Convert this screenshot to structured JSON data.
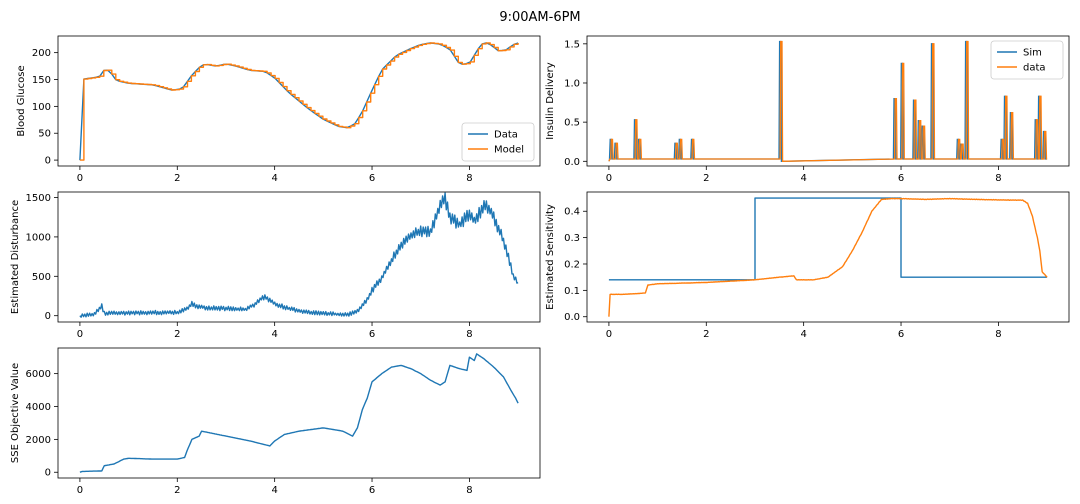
{
  "title": "9:00AM-6PM",
  "colors": {
    "blue": "#1f77b4",
    "orange": "#ff7f0e"
  },
  "chart_data": [
    {
      "id": "glucose",
      "type": "line",
      "ylabel": "Blood Glucose",
      "xlim": [
        -0.45,
        9.45
      ],
      "ylim": [
        -11,
        231
      ],
      "xticks": [
        0,
        2,
        4,
        6,
        8
      ],
      "yticks": [
        0,
        50,
        100,
        150,
        200
      ],
      "legend": {
        "position": "bottom-right",
        "entries": [
          "Data",
          "Model"
        ]
      },
      "series": [
        {
          "name": "Data",
          "color": "#1f77b4",
          "step": false,
          "x": [
            0,
            0.02,
            0.4,
            0.5,
            0.6,
            0.75,
            1.0,
            1.5,
            1.9,
            2.1,
            2.3,
            2.5,
            2.6,
            2.8,
            3.0,
            3.2,
            3.5,
            3.8,
            4.0,
            4.3,
            4.7,
            5.0,
            5.3,
            5.5,
            5.65,
            5.8,
            6.0,
            6.2,
            6.5,
            6.8,
            7.0,
            7.2,
            7.4,
            7.6,
            7.8,
            8.0,
            8.1,
            8.2,
            8.3,
            8.45,
            8.6,
            8.75,
            8.9,
            9.0
          ],
          "y": [
            0,
            150,
            155,
            168,
            167,
            148,
            143,
            140,
            130,
            133,
            158,
            177,
            178,
            175,
            179,
            175,
            167,
            165,
            153,
            125,
            95,
            76,
            63,
            60,
            68,
            90,
            130,
            168,
            195,
            208,
            215,
            218,
            216,
            206,
            178,
            180,
            195,
            210,
            220,
            214,
            203,
            205,
            215,
            218
          ]
        },
        {
          "name": "Model",
          "color": "#ff7f0e",
          "step": true,
          "x": [
            0,
            0.02,
            0.4,
            0.5,
            0.6,
            0.75,
            1.0,
            1.5,
            1.9,
            2.1,
            2.3,
            2.5,
            2.6,
            2.8,
            3.0,
            3.2,
            3.5,
            3.8,
            4.0,
            4.3,
            4.7,
            5.0,
            5.3,
            5.5,
            5.65,
            5.8,
            6.0,
            6.2,
            6.5,
            6.8,
            7.0,
            7.2,
            7.4,
            7.6,
            7.8,
            8.0,
            8.1,
            8.2,
            8.3,
            8.45,
            8.6,
            8.75,
            8.9,
            9.0
          ],
          "y": [
            0,
            150,
            155,
            168,
            167,
            148,
            143,
            140,
            130,
            133,
            158,
            177,
            178,
            175,
            179,
            175,
            167,
            165,
            153,
            125,
            95,
            76,
            63,
            60,
            68,
            90,
            130,
            168,
            195,
            208,
            215,
            218,
            216,
            206,
            178,
            180,
            195,
            210,
            220,
            214,
            203,
            205,
            215,
            218
          ]
        }
      ]
    },
    {
      "id": "insulin",
      "type": "line",
      "ylabel": "Insulin Delivery",
      "xlim": [
        -0.45,
        9.45
      ],
      "ylim": [
        -0.06,
        1.6
      ],
      "xticks": [
        0,
        2,
        4,
        6,
        8
      ],
      "yticks": [
        0.0,
        0.5,
        1.0,
        1.5
      ],
      "ytick_labels": [
        "0.0",
        "0.5",
        "1.0",
        "1.5"
      ],
      "legend": {
        "position": "top-right",
        "entries": [
          "Sim",
          "data"
        ]
      },
      "baseline": 0.03,
      "pulses": [
        {
          "x": 0.05,
          "h": 0.28
        },
        {
          "x": 0.15,
          "h": 0.23
        },
        {
          "x": 0.55,
          "h": 0.53
        },
        {
          "x": 0.63,
          "h": 0.28
        },
        {
          "x": 1.38,
          "h": 0.23
        },
        {
          "x": 1.47,
          "h": 0.28
        },
        {
          "x": 1.72,
          "h": 0.28
        },
        {
          "x": 3.53,
          "h": 1.53
        },
        {
          "x": 5.88,
          "h": 0.8
        },
        {
          "x": 6.03,
          "h": 1.25
        },
        {
          "x": 6.28,
          "h": 0.78
        },
        {
          "x": 6.38,
          "h": 0.52
        },
        {
          "x": 6.46,
          "h": 0.45
        },
        {
          "x": 6.65,
          "h": 1.5
        },
        {
          "x": 7.18,
          "h": 0.28
        },
        {
          "x": 7.25,
          "h": 0.22
        },
        {
          "x": 7.35,
          "h": 1.53
        },
        {
          "x": 8.08,
          "h": 0.28
        },
        {
          "x": 8.15,
          "h": 0.83
        },
        {
          "x": 8.27,
          "h": 0.62
        },
        {
          "x": 8.78,
          "h": 0.53
        },
        {
          "x": 8.85,
          "h": 0.83
        },
        {
          "x": 8.95,
          "h": 0.38
        }
      ]
    },
    {
      "id": "disturbance",
      "type": "line",
      "ylabel": "Estimated Disturbance",
      "xlim": [
        -0.45,
        9.45
      ],
      "ylim": [
        -80,
        1570
      ],
      "xticks": [
        0,
        2,
        4,
        6,
        8
      ],
      "yticks": [
        0,
        500,
        1000,
        1500
      ],
      "series": [
        {
          "name": "",
          "color": "#1f77b4",
          "jitter": 0.06,
          "x": [
            0,
            0.3,
            0.45,
            0.5,
            1.0,
            1.5,
            2.0,
            2.2,
            2.3,
            2.4,
            2.6,
            3.0,
            3.4,
            3.6,
            3.75,
            3.8,
            3.9,
            4.0,
            4.3,
            4.6,
            5.0,
            5.5,
            5.7,
            5.9,
            6.0,
            6.2,
            6.4,
            6.6,
            6.8,
            7.0,
            7.2,
            7.4,
            7.5,
            7.6,
            7.8,
            8.0,
            8.1,
            8.3,
            8.4,
            8.5,
            8.6,
            8.7,
            8.8,
            8.9,
            9.0
          ],
          "y": [
            0,
            20,
            120,
            30,
            35,
            40,
            40,
            90,
            150,
            120,
            100,
            90,
            80,
            150,
            230,
            240,
            200,
            150,
            90,
            50,
            30,
            10,
            60,
            200,
            320,
            480,
            700,
            900,
            1020,
            1080,
            1060,
            1400,
            1490,
            1250,
            1150,
            1300,
            1200,
            1400,
            1360,
            1250,
            1100,
            950,
            750,
            500,
            420
          ]
        }
      ]
    },
    {
      "id": "sensitivity",
      "type": "line",
      "ylabel": "Estimated Sensitivity",
      "xlim": [
        -0.45,
        9.45
      ],
      "ylim": [
        -0.02,
        0.473
      ],
      "xticks": [
        0,
        2,
        4,
        6,
        8
      ],
      "yticks": [
        0.0,
        0.1,
        0.2,
        0.3,
        0.4
      ],
      "ytick_labels": [
        "0.0",
        "0.1",
        "0.2",
        "0.3",
        "0.4"
      ],
      "series": [
        {
          "name": "",
          "color": "#1f77b4",
          "step": true,
          "x": [
            0,
            3.0,
            6.0,
            9.0
          ],
          "y": [
            0.14,
            0.45,
            0.15,
            0.15
          ]
        },
        {
          "name": "",
          "color": "#ff7f0e",
          "jitter": 0.002,
          "x": [
            0,
            0.02,
            0.3,
            0.6,
            0.75,
            0.8,
            1.0,
            2.0,
            3.0,
            3.5,
            3.8,
            3.85,
            4.2,
            4.5,
            4.8,
            5.0,
            5.2,
            5.4,
            5.6,
            5.8,
            6.0,
            6.5,
            7.0,
            7.5,
            8.0,
            8.5,
            8.6,
            8.7,
            8.8,
            8.85,
            8.9,
            9.0
          ],
          "y": [
            0,
            0.085,
            0.085,
            0.088,
            0.09,
            0.12,
            0.125,
            0.13,
            0.14,
            0.15,
            0.155,
            0.14,
            0.14,
            0.15,
            0.19,
            0.25,
            0.32,
            0.4,
            0.445,
            0.448,
            0.448,
            0.445,
            0.448,
            0.445,
            0.443,
            0.442,
            0.43,
            0.38,
            0.3,
            0.25,
            0.17,
            0.15
          ]
        }
      ]
    },
    {
      "id": "sse",
      "type": "line",
      "ylabel": "SSE Objective Value",
      "xlim": [
        -0.45,
        9.45
      ],
      "ylim": [
        -350,
        7560
      ],
      "xticks": [
        0,
        2,
        4,
        6,
        8
      ],
      "yticks": [
        0,
        2000,
        4000,
        6000
      ],
      "series": [
        {
          "name": "",
          "color": "#1f77b4",
          "jitter": 0,
          "x": [
            0,
            0.05,
            0.45,
            0.5,
            0.7,
            0.9,
            1.0,
            1.5,
            2.0,
            2.15,
            2.2,
            2.3,
            2.45,
            2.5,
            3.0,
            3.5,
            3.9,
            4.0,
            4.2,
            4.5,
            5.0,
            5.4,
            5.6,
            5.7,
            5.8,
            5.9,
            6.0,
            6.2,
            6.4,
            6.6,
            6.8,
            7.0,
            7.2,
            7.4,
            7.5,
            7.6,
            7.8,
            7.95,
            8.0,
            8.1,
            8.15,
            8.3,
            8.5,
            8.7,
            8.85,
            8.95,
            9.0
          ],
          "y": [
            0,
            50,
            80,
            400,
            500,
            800,
            850,
            800,
            800,
            900,
            1300,
            2000,
            2200,
            2500,
            2200,
            1900,
            1600,
            1900,
            2300,
            2500,
            2700,
            2500,
            2200,
            2700,
            3800,
            4500,
            5500,
            6000,
            6400,
            6500,
            6300,
            6000,
            5600,
            5300,
            5500,
            6500,
            6300,
            6200,
            7000,
            6800,
            7200,
            6900,
            6400,
            5800,
            5000,
            4500,
            4200
          ]
        }
      ]
    }
  ]
}
